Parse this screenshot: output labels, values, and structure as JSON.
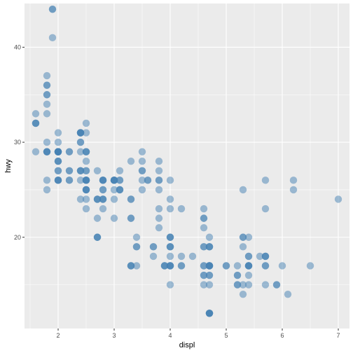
{
  "chart_data": {
    "type": "scatter",
    "xlabel": "displ",
    "ylabel": "hwy",
    "xlim": [
      1.4,
      7.2
    ],
    "ylim": [
      10.4,
      44.6
    ],
    "x_ticks": [
      2,
      3,
      4,
      5,
      6,
      7
    ],
    "x_tick_labels": [
      "2",
      "3",
      "4",
      "5",
      "6",
      "7"
    ],
    "y_ticks": [
      20,
      30,
      40
    ],
    "y_tick_labels": [
      "20",
      "30",
      "40"
    ],
    "grid": true,
    "point_color": "#4682b4",
    "point_alpha": 0.5,
    "panel_background": "#ebebeb",
    "points": [
      [
        1.8,
        29
      ],
      [
        1.8,
        29
      ],
      [
        2.0,
        31
      ],
      [
        2.0,
        30
      ],
      [
        2.8,
        26
      ],
      [
        2.8,
        26
      ],
      [
        3.1,
        27
      ],
      [
        1.8,
        26
      ],
      [
        1.8,
        25
      ],
      [
        2.0,
        28
      ],
      [
        2.0,
        27
      ],
      [
        2.8,
        25
      ],
      [
        2.8,
        25
      ],
      [
        3.1,
        25
      ],
      [
        3.1,
        25
      ],
      [
        2.8,
        24
      ],
      [
        3.1,
        25
      ],
      [
        4.2,
        23
      ],
      [
        5.3,
        20
      ],
      [
        5.3,
        15
      ],
      [
        5.3,
        20
      ],
      [
        5.7,
        17
      ],
      [
        6.0,
        17
      ],
      [
        5.7,
        26
      ],
      [
        5.7,
        23
      ],
      [
        6.2,
        26
      ],
      [
        6.2,
        25
      ],
      [
        7.0,
        24
      ],
      [
        5.3,
        19
      ],
      [
        5.3,
        14
      ],
      [
        5.7,
        15
      ],
      [
        6.5,
        17
      ],
      [
        2.4,
        27
      ],
      [
        2.4,
        30
      ],
      [
        3.1,
        26
      ],
      [
        3.5,
        29
      ],
      [
        3.6,
        26
      ],
      [
        2.4,
        24
      ],
      [
        3.0,
        24
      ],
      [
        3.3,
        22
      ],
      [
        3.3,
        22
      ],
      [
        3.3,
        24
      ],
      [
        3.3,
        24
      ],
      [
        3.3,
        17
      ],
      [
        3.8,
        22
      ],
      [
        3.8,
        21
      ],
      [
        3.8,
        23
      ],
      [
        4.0,
        23
      ],
      [
        3.7,
        19
      ],
      [
        3.7,
        18
      ],
      [
        3.9,
        17
      ],
      [
        3.9,
        17
      ],
      [
        4.7,
        19
      ],
      [
        4.7,
        19
      ],
      [
        4.7,
        12
      ],
      [
        5.2,
        17
      ],
      [
        5.2,
        15
      ],
      [
        3.9,
        17
      ],
      [
        4.7,
        17
      ],
      [
        4.7,
        12
      ],
      [
        4.7,
        17
      ],
      [
        5.2,
        16
      ],
      [
        5.7,
        18
      ],
      [
        5.9,
        15
      ],
      [
        4.7,
        16
      ],
      [
        4.7,
        12
      ],
      [
        4.7,
        17
      ],
      [
        4.7,
        17
      ],
      [
        4.7,
        16
      ],
      [
        4.7,
        12
      ],
      [
        5.2,
        15
      ],
      [
        5.2,
        16
      ],
      [
        5.7,
        17
      ],
      [
        5.9,
        15
      ],
      [
        4.6,
        17
      ],
      [
        5.4,
        17
      ],
      [
        5.4,
        18
      ],
      [
        4.0,
        17
      ],
      [
        4.0,
        19
      ],
      [
        4.0,
        17
      ],
      [
        4.0,
        19
      ],
      [
        4.6,
        19
      ],
      [
        5.0,
        17
      ],
      [
        4.2,
        17
      ],
      [
        4.2,
        17
      ],
      [
        4.6,
        16
      ],
      [
        4.6,
        16
      ],
      [
        4.6,
        17
      ],
      [
        5.4,
        15
      ],
      [
        5.4,
        17
      ],
      [
        5.4,
        17
      ],
      [
        3.8,
        26
      ],
      [
        3.8,
        25
      ],
      [
        4.0,
        26
      ],
      [
        4.0,
        24
      ],
      [
        4.6,
        21
      ],
      [
        4.6,
        22
      ],
      [
        4.6,
        23
      ],
      [
        4.6,
        22
      ],
      [
        5.4,
        20
      ],
      [
        1.6,
        33
      ],
      [
        1.6,
        32
      ],
      [
        1.6,
        32
      ],
      [
        1.6,
        29
      ],
      [
        1.6,
        32
      ],
      [
        1.8,
        34
      ],
      [
        1.8,
        36
      ],
      [
        1.8,
        36
      ],
      [
        2.0,
        29
      ],
      [
        2.4,
        26
      ],
      [
        2.4,
        27
      ],
      [
        2.4,
        30
      ],
      [
        2.4,
        31
      ],
      [
        2.5,
        26
      ],
      [
        2.5,
        26
      ],
      [
        3.3,
        28
      ],
      [
        2.0,
        26
      ],
      [
        2.0,
        29
      ],
      [
        2.0,
        28
      ],
      [
        2.0,
        27
      ],
      [
        2.7,
        24
      ],
      [
        2.7,
        24
      ],
      [
        2.7,
        24
      ],
      [
        3.0,
        22
      ],
      [
        3.7,
        19
      ],
      [
        4.0,
        20
      ],
      [
        4.7,
        17
      ],
      [
        4.7,
        12
      ],
      [
        4.7,
        19
      ],
      [
        5.7,
        18
      ],
      [
        6.1,
        14
      ],
      [
        4.0,
        15
      ],
      [
        4.2,
        18
      ],
      [
        4.4,
        18
      ],
      [
        4.6,
        15
      ],
      [
        5.4,
        17
      ],
      [
        5.4,
        16
      ],
      [
        5.4,
        18
      ],
      [
        4.0,
        17
      ],
      [
        4.0,
        19
      ],
      [
        4.6,
        19
      ],
      [
        5.0,
        17
      ],
      [
        2.4,
        29
      ],
      [
        2.4,
        27
      ],
      [
        2.5,
        31
      ],
      [
        2.5,
        32
      ],
      [
        3.5,
        27
      ],
      [
        3.5,
        26
      ],
      [
        3.0,
        26
      ],
      [
        3.0,
        25
      ],
      [
        3.5,
        25
      ],
      [
        3.3,
        17
      ],
      [
        3.3,
        17
      ],
      [
        4.0,
        20
      ],
      [
        5.6,
        18
      ],
      [
        3.1,
        26
      ],
      [
        3.8,
        26
      ],
      [
        3.8,
        27
      ],
      [
        3.8,
        28
      ],
      [
        5.3,
        25
      ],
      [
        2.5,
        25
      ],
      [
        2.5,
        24
      ],
      [
        2.5,
        27
      ],
      [
        2.5,
        25
      ],
      [
        2.5,
        26
      ],
      [
        2.5,
        23
      ],
      [
        2.2,
        26
      ],
      [
        2.2,
        26
      ],
      [
        2.5,
        26
      ],
      [
        2.5,
        26
      ],
      [
        2.5,
        25
      ],
      [
        2.5,
        27
      ],
      [
        2.5,
        25
      ],
      [
        2.7,
        27
      ],
      [
        2.7,
        20
      ],
      [
        3.4,
        20
      ],
      [
        3.4,
        19
      ],
      [
        4.0,
        17
      ],
      [
        4.7,
        20
      ],
      [
        2.2,
        29
      ],
      [
        2.2,
        27
      ],
      [
        2.4,
        31
      ],
      [
        2.4,
        31
      ],
      [
        3.0,
        26
      ],
      [
        3.0,
        26
      ],
      [
        3.5,
        28
      ],
      [
        2.2,
        27
      ],
      [
        2.2,
        29
      ],
      [
        2.4,
        31
      ],
      [
        2.4,
        31
      ],
      [
        3.0,
        26
      ],
      [
        3.0,
        26
      ],
      [
        3.5,
        27
      ],
      [
        1.8,
        30
      ],
      [
        1.8,
        33
      ],
      [
        1.8,
        35
      ],
      [
        1.8,
        37
      ],
      [
        1.8,
        35
      ],
      [
        4.7,
        15
      ],
      [
        5.7,
        18
      ],
      [
        2.7,
        20
      ],
      [
        2.7,
        20
      ],
      [
        2.7,
        22
      ],
      [
        3.4,
        17
      ],
      [
        3.4,
        19
      ],
      [
        4.0,
        18
      ],
      [
        4.0,
        20
      ],
      [
        2.0,
        29
      ],
      [
        2.0,
        26
      ],
      [
        2.0,
        29
      ],
      [
        2.0,
        29
      ],
      [
        2.8,
        24
      ],
      [
        1.9,
        44
      ],
      [
        2.0,
        29
      ],
      [
        2.0,
        26
      ],
      [
        2.0,
        29
      ],
      [
        2.0,
        29
      ],
      [
        2.5,
        29
      ],
      [
        2.5,
        29
      ],
      [
        2.8,
        23
      ],
      [
        2.8,
        24
      ],
      [
        1.9,
        44
      ],
      [
        1.9,
        41
      ],
      [
        2.0,
        29
      ],
      [
        2.0,
        26
      ],
      [
        2.5,
        28
      ],
      [
        2.5,
        29
      ],
      [
        1.8,
        29
      ],
      [
        1.8,
        29
      ],
      [
        2.0,
        28
      ],
      [
        2.0,
        29
      ],
      [
        2.8,
        26
      ],
      [
        2.8,
        26
      ],
      [
        3.6,
        26
      ]
    ]
  }
}
